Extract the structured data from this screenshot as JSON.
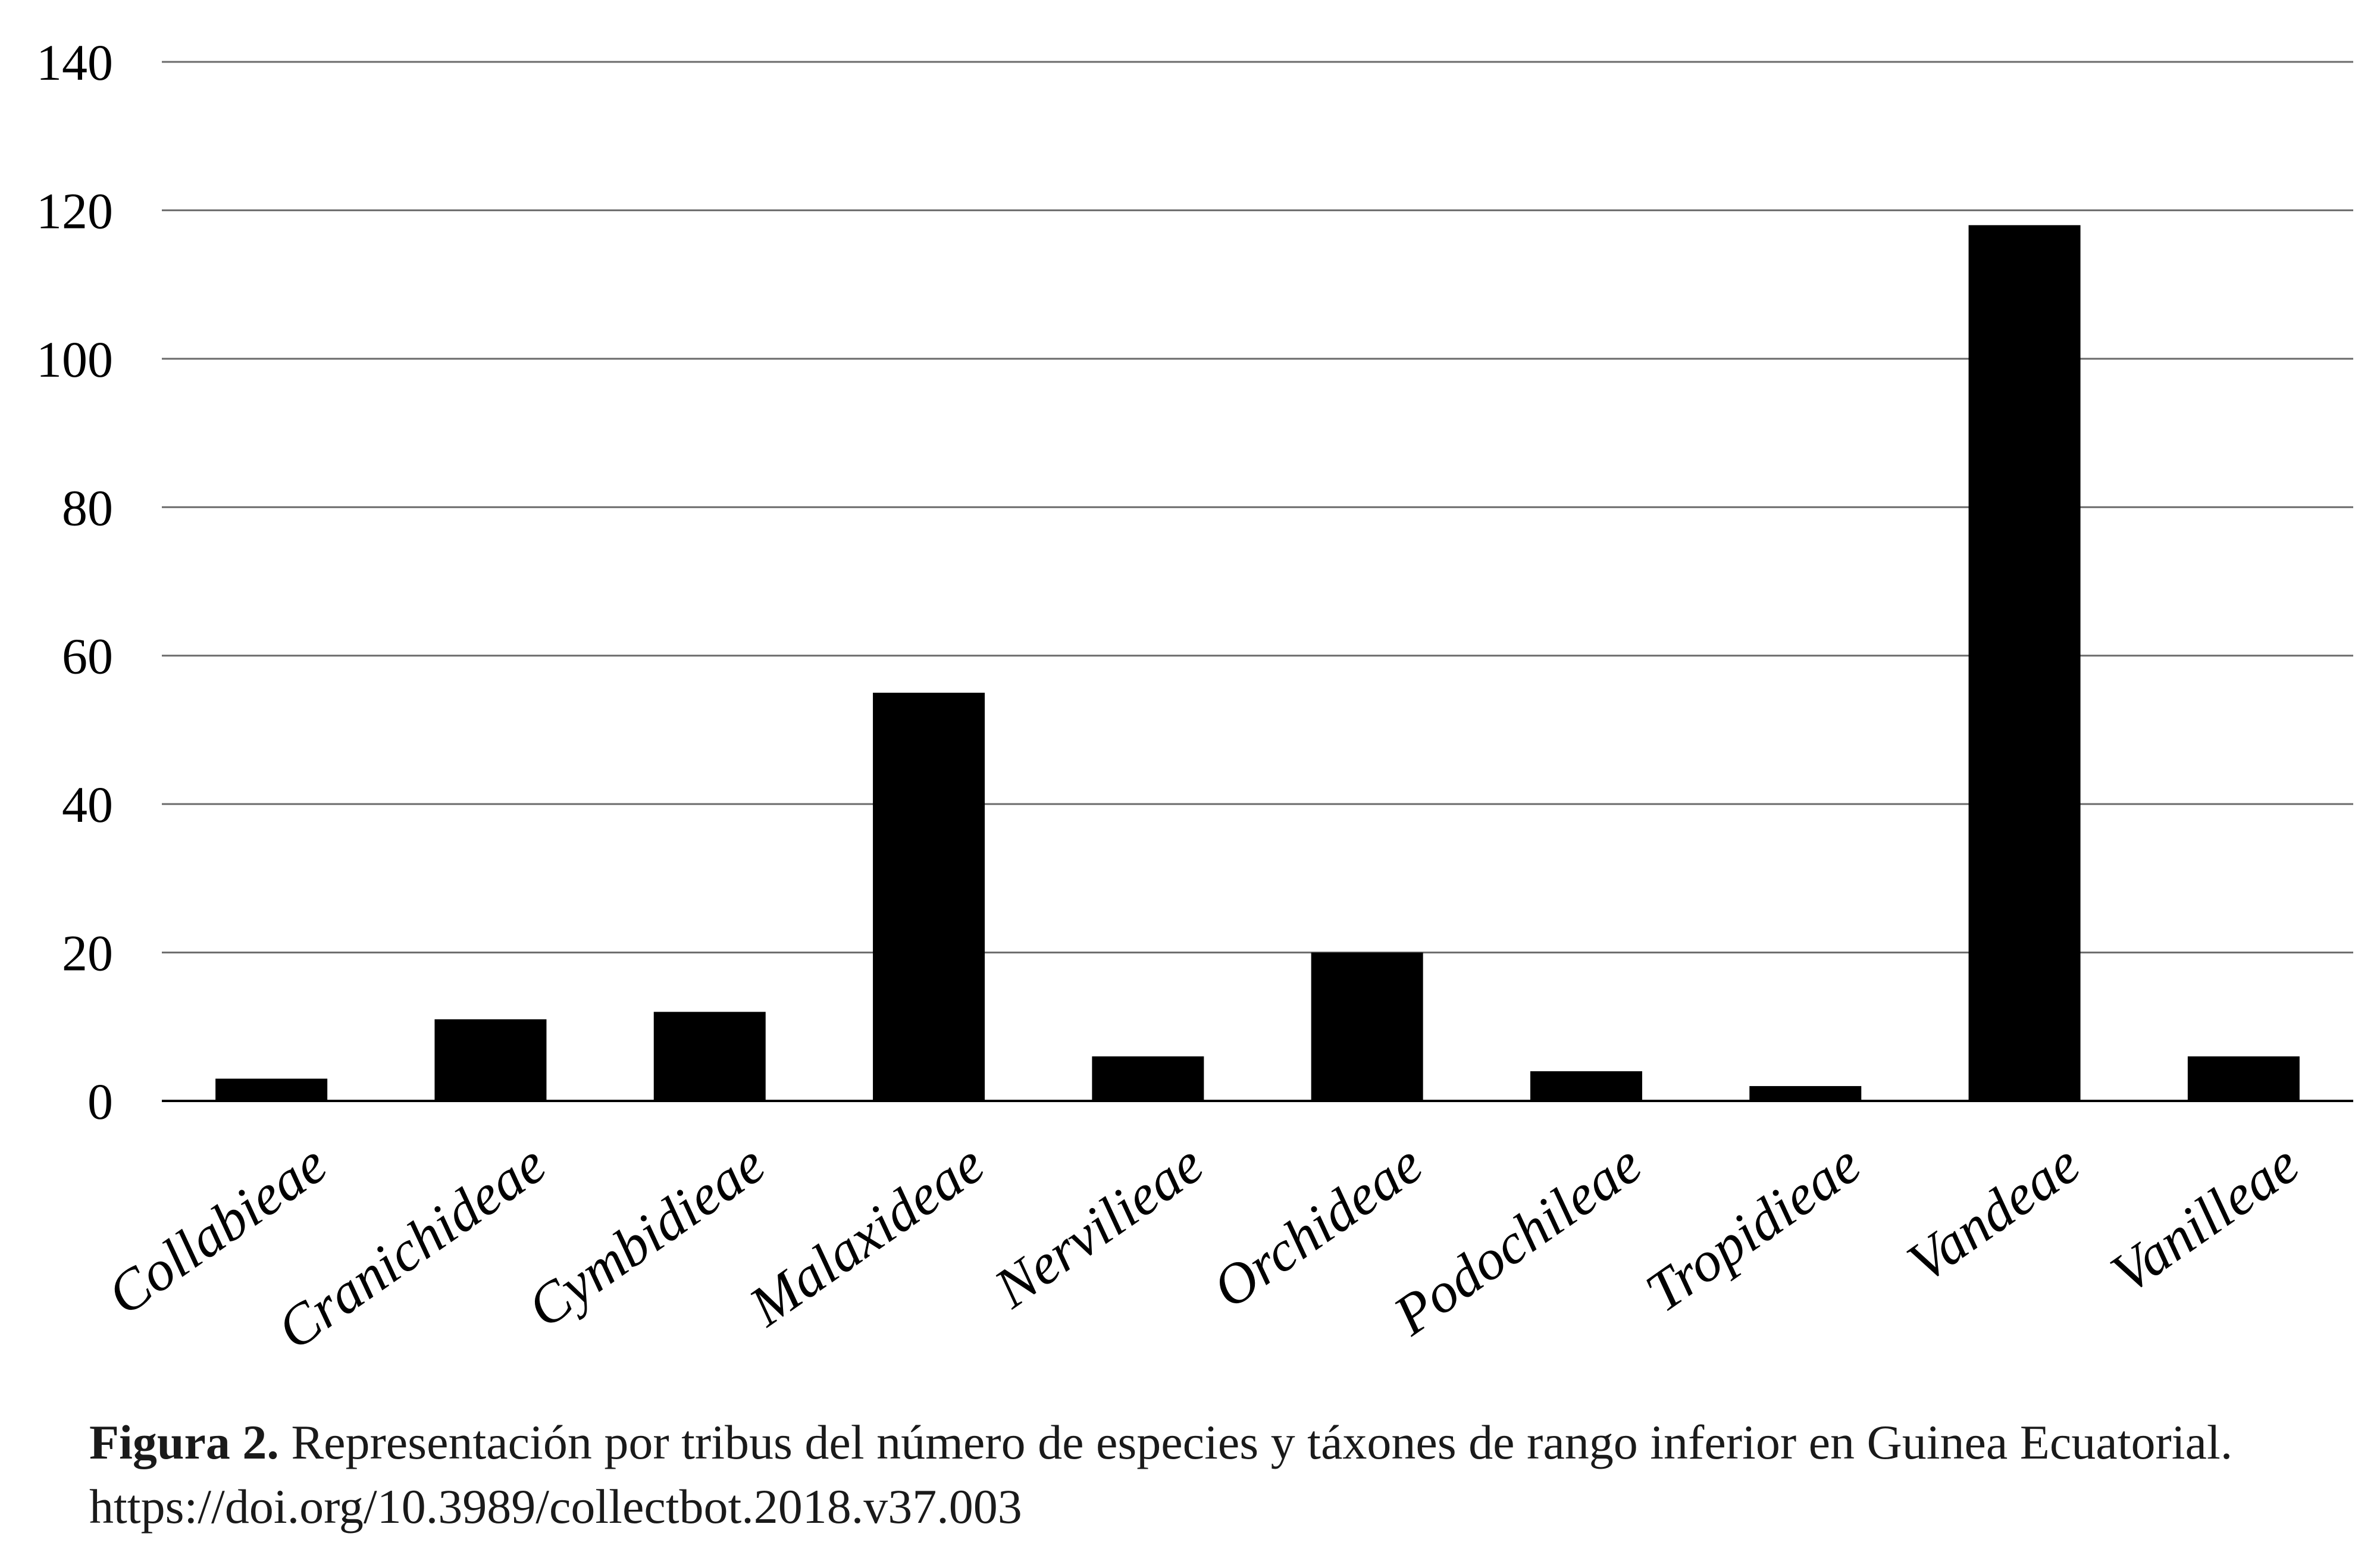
{
  "chart_data": {
    "type": "bar",
    "categories": [
      "Collabieae",
      "Cranichideae",
      "Cymbidieae",
      "Malaxideae",
      "Nervilieae",
      "Orchideae",
      "Podochileae",
      "Tropidieae",
      "Vandeae",
      "Vanilleae"
    ],
    "values": [
      3,
      11,
      12,
      55,
      6,
      20,
      4,
      2,
      118,
      6
    ],
    "yticks": [
      "0",
      "20",
      "40",
      "60",
      "80",
      "100",
      "120",
      "140"
    ],
    "ylim": [
      0,
      140
    ],
    "grid": true,
    "bar_color": "#000000",
    "title": "",
    "xlabel": "",
    "ylabel": ""
  },
  "caption": {
    "figure_label": "Figura 2.",
    "text": " Representación por tribus del número de especies y táxones de rango inferior en Guinea Ecuatorial.",
    "doi": "https://doi.org/10.3989/collectbot.2018.v37.003"
  }
}
